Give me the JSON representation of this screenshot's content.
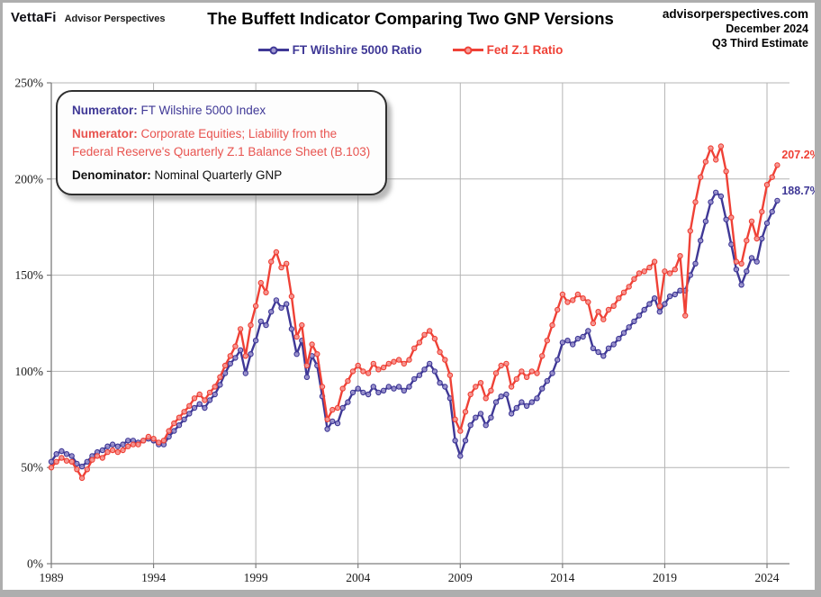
{
  "header": {
    "brand": "VettaFi",
    "brand_tagline": "Advisor Perspectives",
    "title": "The Buffett Indicator Comparing Two GNP Versions",
    "source_site": "advisorperspectives.com",
    "source_date": "December 2024",
    "source_estimate": "Q3 Third Estimate"
  },
  "legend": {
    "items": [
      {
        "label": "FT Wilshire 5000 Ratio",
        "color": "#3f3896",
        "marker_fill": "#a39bd2"
      },
      {
        "label": "Fed Z.1 Ratio",
        "color": "#ef4136",
        "marker_fill": "#f6a09c"
      }
    ]
  },
  "annotation": {
    "numerator1_label": "Numerator:",
    "numerator1_text": " FT Wilshire 5000 Index",
    "numerator2_label": "Numerator:",
    "numerator2_text": " Corporate Equities; Liability from the Federal Reserve's Quarterly Z.1 Balance Sheet (B.103)",
    "denominator_label": "Denominator:",
    "denominator_text": " Nominal Quarterly GNP"
  },
  "end_labels": {
    "fed": "207.2%",
    "wilshire": "188.7%"
  },
  "chart_data": {
    "type": "line",
    "title": "The Buffett Indicator Comparing Two GNP Versions",
    "x_start": 1989.0,
    "x_step": 0.25,
    "x_ticks": [
      1989,
      1994,
      1999,
      2004,
      2009,
      2014,
      2019,
      2024
    ],
    "y_ticks": [
      0,
      50,
      100,
      150,
      200,
      250
    ],
    "y_tick_labels": [
      "0%",
      "50%",
      "100%",
      "150%",
      "200%",
      "250%"
    ],
    "xlim": [
      1989,
      2025.1
    ],
    "ylim": [
      0,
      250
    ],
    "grid": true,
    "legend_position": "top",
    "series": [
      {
        "name": "FT Wilshire 5000 Ratio",
        "color": "#3f3896",
        "marker_fill": "#a39bd2",
        "last_label": "188.7%",
        "values": [
          53,
          57,
          58.5,
          57,
          56,
          52,
          50.5,
          53,
          56,
          58,
          59,
          61,
          62,
          61,
          62,
          64,
          64,
          63,
          64,
          65,
          64,
          62,
          62,
          66,
          69,
          72,
          75,
          78,
          81,
          83,
          81,
          85,
          88,
          93,
          99,
          104,
          107,
          111,
          99,
          109,
          116,
          126,
          124,
          131,
          137,
          133,
          135,
          122,
          109,
          116,
          97,
          108,
          103,
          87,
          70,
          74,
          73,
          81,
          84,
          89,
          91,
          89,
          88,
          92,
          89,
          90,
          92,
          91,
          92,
          90,
          92,
          96,
          98,
          101,
          104,
          100,
          94,
          92,
          86,
          64,
          56,
          64,
          72,
          76,
          78,
          72,
          76,
          84,
          87,
          88,
          78,
          81,
          84,
          82,
          84,
          86,
          91,
          95,
          99,
          106,
          115,
          116,
          114,
          117,
          118,
          121,
          112,
          110,
          108,
          112,
          114,
          117,
          120,
          123,
          126,
          129,
          132,
          135,
          138,
          131,
          135,
          139,
          140,
          142,
          142,
          150,
          156,
          168,
          178,
          188,
          193,
          191,
          179,
          166,
          153,
          145,
          152,
          159,
          157,
          169,
          177,
          183,
          188.7
        ]
      },
      {
        "name": "Fed Z.1 Ratio",
        "color": "#ef4136",
        "marker_fill": "#f6a09c",
        "last_label": "207.2%",
        "values": [
          50,
          53,
          55,
          53.5,
          53,
          49,
          44.5,
          49,
          54,
          56,
          55,
          58,
          59,
          58,
          59,
          61,
          62,
          62,
          64,
          66,
          65,
          63,
          64,
          69,
          73,
          76,
          79,
          82,
          86,
          88,
          85,
          89,
          92,
          97,
          103,
          108,
          113,
          122,
          108,
          124,
          134,
          146,
          141,
          157,
          162,
          154,
          156,
          139,
          118,
          124,
          103,
          114,
          109,
          92,
          75,
          80,
          81,
          91,
          95,
          100,
          103,
          100,
          99,
          104,
          101,
          102,
          104,
          105,
          106,
          104,
          106,
          112,
          115,
          119,
          121,
          117,
          110,
          106,
          98,
          75,
          69,
          79,
          88,
          92,
          94,
          86,
          90,
          99,
          103,
          104,
          92,
          96,
          100,
          97,
          100,
          99,
          108,
          116,
          124,
          132,
          140,
          136,
          137,
          140,
          138,
          136,
          125,
          131,
          127,
          132,
          134,
          138,
          141,
          144,
          148,
          151,
          152,
          154,
          157,
          134,
          152,
          151,
          153,
          160,
          129,
          173,
          188,
          201,
          209,
          216,
          210,
          217,
          204,
          180,
          157,
          156,
          168,
          178,
          169,
          183,
          197,
          201,
          207.2
        ]
      }
    ]
  }
}
